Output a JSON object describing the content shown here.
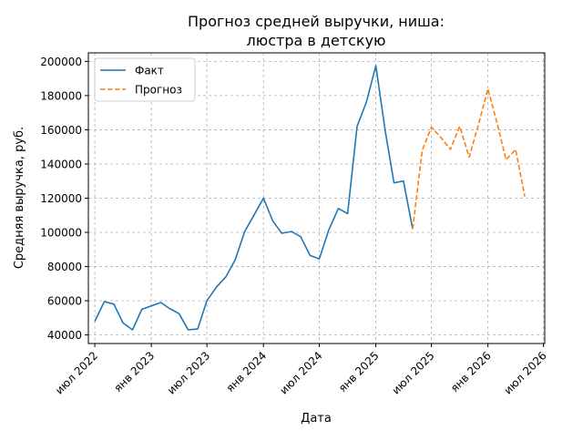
{
  "chart_data": {
    "type": "line",
    "title": "Прогноз средней выручки, ниша:\nлюстра в детскую",
    "xlabel": "Дата",
    "ylabel": "Средняя выручка, руб.",
    "x_ticks": [
      "июл 2022",
      "янв 2023",
      "июл 2023",
      "янв 2024",
      "июл 2024",
      "янв 2025",
      "июл 2025",
      "янв 2026",
      "июл 2026"
    ],
    "y_ticks": [
      "40000",
      "60000",
      "80000",
      "100000",
      "120000",
      "140000",
      "160000",
      "180000",
      "200000"
    ],
    "ylim": [
      35000,
      205000
    ],
    "xlim": [
      "2022-06-10",
      "2026-07-05"
    ],
    "grid": true,
    "legend_position": "top-left",
    "series": [
      {
        "name": "Факт",
        "color": "#1f77b4",
        "style": "solid",
        "x": [
          "2022-07-01",
          "2022-08-01",
          "2022-09-01",
          "2022-10-01",
          "2022-11-01",
          "2022-12-01",
          "2023-01-01",
          "2023-02-01",
          "2023-03-01",
          "2023-04-01",
          "2023-05-01",
          "2023-06-01",
          "2023-07-01",
          "2023-08-01",
          "2023-09-01",
          "2023-10-01",
          "2023-11-01",
          "2023-12-01",
          "2024-01-01",
          "2024-02-01",
          "2024-03-01",
          "2024-04-01",
          "2024-05-01",
          "2024-06-01",
          "2024-07-01",
          "2024-08-01",
          "2024-09-01",
          "2024-10-01",
          "2024-11-01",
          "2024-12-01",
          "2025-01-01",
          "2025-02-01",
          "2025-03-01",
          "2025-04-01",
          "2025-05-01"
        ],
        "values": [
          48000,
          59500,
          58000,
          47000,
          43000,
          55000,
          57000,
          59000,
          55500,
          52500,
          43000,
          43500,
          60000,
          68000,
          74000,
          84000,
          100500,
          110000,
          120000,
          106500,
          99500,
          100500,
          97500,
          86500,
          84500,
          101500,
          114000,
          111000,
          162000,
          176000,
          197500,
          159000,
          129000,
          130000,
          102000
        ]
      },
      {
        "name": "Прогноз",
        "color": "#ff7f0e",
        "style": "dashed",
        "x": [
          "2025-05-01",
          "2025-06-01",
          "2025-07-01",
          "2025-08-01",
          "2025-09-01",
          "2025-10-01",
          "2025-11-01",
          "2025-12-01",
          "2026-01-01",
          "2026-02-01",
          "2026-03-01",
          "2026-04-01",
          "2026-05-01"
        ],
        "values": [
          102000,
          148000,
          161500,
          155500,
          148500,
          162000,
          144000,
          163000,
          184000,
          163000,
          142500,
          148500,
          121000
        ]
      }
    ]
  }
}
